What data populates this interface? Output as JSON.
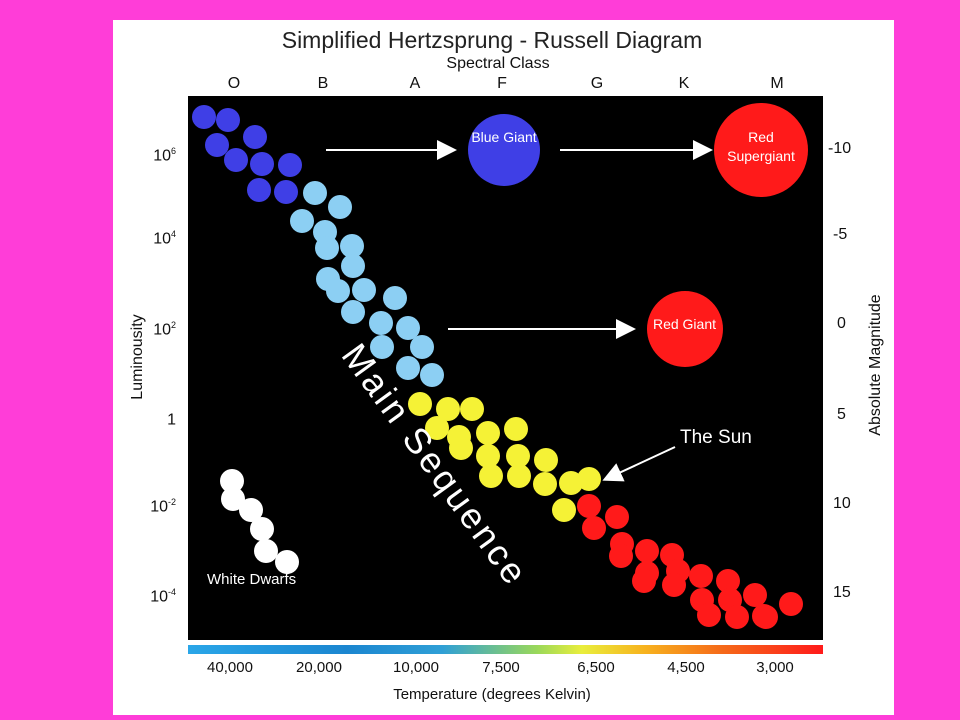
{
  "title": "Simplified Hertzsprung - Russell Diagram",
  "spectral_title": "Spectral Class",
  "spectral_classes": [
    "O",
    "B",
    "A",
    "F",
    "G",
    "K",
    "M"
  ],
  "luminosity": {
    "title": "Luminousity",
    "ticks": [
      {
        "base": "10",
        "exp": "6"
      },
      {
        "base": "10",
        "exp": "4"
      },
      {
        "base": "10",
        "exp": "2"
      },
      {
        "base": "1",
        "exp": ""
      },
      {
        "base": "10",
        "exp": "-2"
      },
      {
        "base": "10",
        "exp": "-4"
      }
    ]
  },
  "magnitude": {
    "title": "Absolute Magnitude",
    "ticks": [
      "-10",
      "-5",
      "0",
      "5",
      "10",
      "15"
    ]
  },
  "temperature": {
    "title": "Temperature (degrees Kelvin)",
    "ticks": [
      "40,000",
      "20,000",
      "10,000",
      "7,500",
      "6,500",
      "4,500",
      "3,000"
    ]
  },
  "labels": {
    "blue_giant": "Blue Giant",
    "red_supergiant": "Red Supergiant",
    "red_giant": "Red Giant",
    "the_sun": "The Sun",
    "main_sequence": "Main Sequence",
    "white_dwarfs": "White Dwarfs"
  },
  "colors": {
    "background": "#FF3DD8",
    "blue": "#3F3FE6",
    "light_blue": "#8CCFF3",
    "yellow": "#F5F236",
    "red": "#FF1A1A",
    "white": "#FFFFFF"
  }
}
